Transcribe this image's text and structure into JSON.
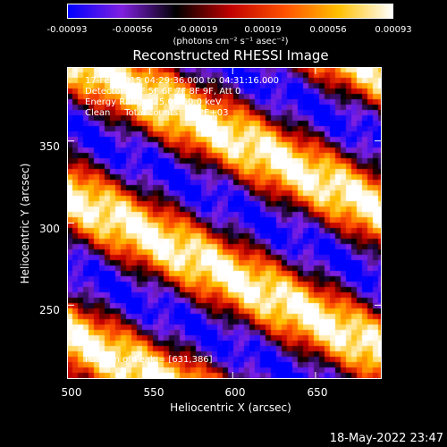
{
  "chart_data": {
    "type": "heatmap",
    "title": "Reconstructed RHESSI Image",
    "xlabel": "Heliocentric X (arcsec)",
    "ylabel": "Heliocentric Y (arcsec)",
    "xlim": [
      500,
      690
    ],
    "ylim": [
      205,
      395
    ],
    "x_ticks": [
      "500",
      "550",
      "600",
      "650"
    ],
    "x_tick_values": [
      500,
      550,
      600,
      650
    ],
    "y_ticks": [
      "250",
      "300",
      "350"
    ],
    "y_tick_values": [
      250,
      300,
      350
    ],
    "colorbar": {
      "min": -0.00093,
      "max": 0.00093,
      "tick_labels": [
        "-0.00093",
        "-0.00056",
        "-0.00019",
        "0.00019",
        "0.00056",
        "0.00093"
      ],
      "tick_values": [
        -0.00093,
        -0.00056,
        -0.00019,
        0.00019,
        0.00056,
        0.00093
      ],
      "unit": "(photons cm⁻² s⁻¹ asec⁻²)",
      "colors": [
        "#0000ff",
        "#8020e0",
        "#000000",
        "#c00000",
        "#ff5000",
        "#ffc000",
        "#ffffff"
      ]
    },
    "annotations": [
      "17-Feb-2015 04:29:36.000 to 04:31:16.000",
      "Detectors: 3F 5F 6F 7F 8F 9F, Att 0",
      "Energy Range: 25.0 - 50.0 keV",
      "Clean     Total counts: 3.12E+03",
      "Position of Peak = [631,386]"
    ],
    "peak_position": [
      631,
      386
    ],
    "fringe_pattern": {
      "description_values": "diagonal bright fringes descending left-to-right",
      "band_slope_arcsec_per_arcsec": -0.5,
      "band_period_y_arcsec": 85,
      "bright_band_intercepts_y_at_x500": [
        402,
        318
      ]
    }
  },
  "timestamp": "18-May-2022 23:47"
}
